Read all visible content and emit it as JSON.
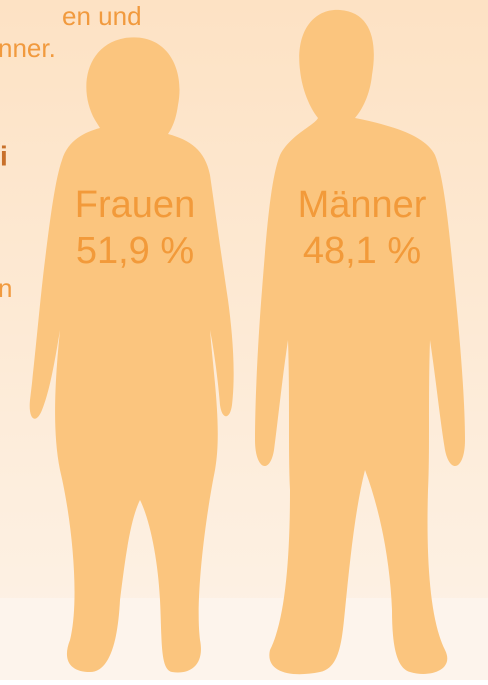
{
  "fragments": [
    "en und",
    "nner.",
    "i",
    "n"
  ],
  "figures": [
    {
      "label": "Frauen",
      "value_label": "51,9 %"
    },
    {
      "label": "Männer",
      "value_label": "48,1 %"
    }
  ]
}
